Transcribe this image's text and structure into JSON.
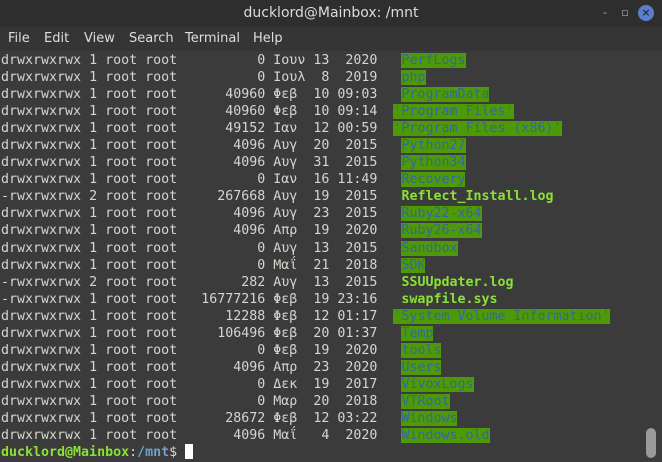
{
  "window": {
    "title": "ducklord@Mainbox: /mnt",
    "minimize": "-",
    "maximize": "▫",
    "close": "×"
  },
  "menu": [
    "File",
    "Edit",
    "View",
    "Search",
    "Terminal",
    "Help"
  ],
  "colors": {
    "dir_bg": "#4e9a06",
    "dir_fg": "#3465a4",
    "file_fg": "#8ae234",
    "prompt_user": "#8ae234",
    "prompt_path": "#729fcf"
  },
  "listing": [
    {
      "perm": "drwxrwxrwx",
      "links": "1",
      "owner": "root",
      "group": "root",
      "size": "0",
      "month": "Ιουν",
      "day": "13",
      "time": "2020",
      "name": "PerfLogs",
      "type": "dir"
    },
    {
      "perm": "drwxrwxrwx",
      "links": "1",
      "owner": "root",
      "group": "root",
      "size": "0",
      "month": "Ιουλ",
      "day": "8",
      "time": "2019",
      "name": "php",
      "type": "dir"
    },
    {
      "perm": "drwxrwxrwx",
      "links": "1",
      "owner": "root",
      "group": "root",
      "size": "40960",
      "month": "Φεβ",
      "day": "10",
      "time": "09:03",
      "name": "ProgramData",
      "type": "dir"
    },
    {
      "perm": "drwxrwxrwx",
      "links": "1",
      "owner": "root",
      "group": "root",
      "size": "40960",
      "month": "Φεβ",
      "day": "10",
      "time": "09:14",
      "name": "'Program Files'",
      "type": "dir"
    },
    {
      "perm": "drwxrwxrwx",
      "links": "1",
      "owner": "root",
      "group": "root",
      "size": "49152",
      "month": "Ιαν",
      "day": "12",
      "time": "00:59",
      "name": "'Program Files (x86)'",
      "type": "dir"
    },
    {
      "perm": "drwxrwxrwx",
      "links": "1",
      "owner": "root",
      "group": "root",
      "size": "4096",
      "month": "Αυγ",
      "day": "20",
      "time": "2015",
      "name": "Python27",
      "type": "dir"
    },
    {
      "perm": "drwxrwxrwx",
      "links": "1",
      "owner": "root",
      "group": "root",
      "size": "4096",
      "month": "Αυγ",
      "day": "31",
      "time": "2015",
      "name": "Python34",
      "type": "dir"
    },
    {
      "perm": "drwxrwxrwx",
      "links": "1",
      "owner": "root",
      "group": "root",
      "size": "0",
      "month": "Ιαν",
      "day": "16",
      "time": "11:49",
      "name": "Recovery",
      "type": "dir"
    },
    {
      "perm": "-rwxrwxrwx",
      "links": "2",
      "owner": "root",
      "group": "root",
      "size": "267668",
      "month": "Αυγ",
      "day": "19",
      "time": "2015",
      "name": "Reflect_Install.log",
      "type": "exe"
    },
    {
      "perm": "drwxrwxrwx",
      "links": "1",
      "owner": "root",
      "group": "root",
      "size": "4096",
      "month": "Αυγ",
      "day": "23",
      "time": "2015",
      "name": "Ruby22-x64",
      "type": "dir"
    },
    {
      "perm": "drwxrwxrwx",
      "links": "1",
      "owner": "root",
      "group": "root",
      "size": "4096",
      "month": "Απρ",
      "day": "19",
      "time": "2020",
      "name": "Ruby26-x64",
      "type": "dir"
    },
    {
      "perm": "drwxrwxrwx",
      "links": "1",
      "owner": "root",
      "group": "root",
      "size": "0",
      "month": "Αυγ",
      "day": "13",
      "time": "2015",
      "name": "Sandbox",
      "type": "dir"
    },
    {
      "perm": "drwxrwxrwx",
      "links": "1",
      "owner": "root",
      "group": "root",
      "size": "0",
      "month": "Μαΐ",
      "day": "21",
      "time": "2018",
      "name": "SDK",
      "type": "dir"
    },
    {
      "perm": "-rwxrwxrwx",
      "links": "2",
      "owner": "root",
      "group": "root",
      "size": "282",
      "month": "Αυγ",
      "day": "13",
      "time": "2015",
      "name": "SSUUpdater.log",
      "type": "exe"
    },
    {
      "perm": "-rwxrwxrwx",
      "links": "1",
      "owner": "root",
      "group": "root",
      "size": "16777216",
      "month": "Φεβ",
      "day": "19",
      "time": "23:16",
      "name": "swapfile.sys",
      "type": "exe"
    },
    {
      "perm": "drwxrwxrwx",
      "links": "1",
      "owner": "root",
      "group": "root",
      "size": "12288",
      "month": "Φεβ",
      "day": "12",
      "time": "01:17",
      "name": "'System Volume Information'",
      "type": "dir"
    },
    {
      "perm": "drwxrwxrwx",
      "links": "1",
      "owner": "root",
      "group": "root",
      "size": "106496",
      "month": "Φεβ",
      "day": "20",
      "time": "01:37",
      "name": "Temp",
      "type": "dir"
    },
    {
      "perm": "drwxrwxrwx",
      "links": "1",
      "owner": "root",
      "group": "root",
      "size": "0",
      "month": "Φεβ",
      "day": "19",
      "time": "2020",
      "name": "tools",
      "type": "dir"
    },
    {
      "perm": "drwxrwxrwx",
      "links": "1",
      "owner": "root",
      "group": "root",
      "size": "4096",
      "month": "Απρ",
      "day": "23",
      "time": "2020",
      "name": "Users",
      "type": "dir"
    },
    {
      "perm": "drwxrwxrwx",
      "links": "1",
      "owner": "root",
      "group": "root",
      "size": "0",
      "month": "Δεκ",
      "day": "19",
      "time": "2017",
      "name": "VivoxLogs",
      "type": "dir"
    },
    {
      "perm": "drwxrwxrwx",
      "links": "1",
      "owner": "root",
      "group": "root",
      "size": "0",
      "month": "Μαρ",
      "day": "20",
      "time": "2018",
      "name": "VTRoot",
      "type": "dir"
    },
    {
      "perm": "drwxrwxrwx",
      "links": "1",
      "owner": "root",
      "group": "root",
      "size": "28672",
      "month": "Φεβ",
      "day": "12",
      "time": "03:22",
      "name": "Windows",
      "type": "dir"
    },
    {
      "perm": "drwxrwxrwx",
      "links": "1",
      "owner": "root",
      "group": "root",
      "size": "4096",
      "month": "Μαΐ",
      "day": "4",
      "time": "2020",
      "name": "Windows.old",
      "type": "dir"
    }
  ],
  "prompt": {
    "user_host": "ducklord@Mainbox",
    "sep": ":",
    "path": "/mnt",
    "symbol": "$"
  }
}
